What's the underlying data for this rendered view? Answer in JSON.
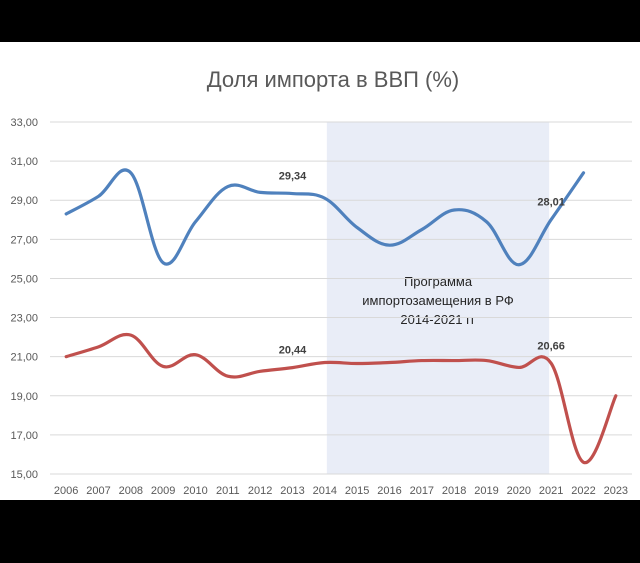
{
  "chart_data": {
    "type": "line",
    "title": "Доля импорта в ВВП (%)",
    "xlabel": "",
    "ylabel": "",
    "x": [
      "2006",
      "2007",
      "2008",
      "2009",
      "2010",
      "2011",
      "2012",
      "2013",
      "2014",
      "2015",
      "2016",
      "2017",
      "2018",
      "2019",
      "2020",
      "2021",
      "2022",
      "2023"
    ],
    "y_ticks": [
      "33,00",
      "31,00",
      "29,00",
      "27,00",
      "25,00",
      "23,00",
      "21,00",
      "19,00",
      "17,00",
      "15,00"
    ],
    "ylim": [
      15,
      33
    ],
    "grid": true,
    "legend": "none",
    "series": [
      {
        "color": "#4F81BD",
        "values": [
          28.3,
          29.2,
          30.4,
          25.8,
          27.9,
          29.7,
          29.4,
          29.34,
          29.1,
          27.6,
          26.7,
          27.5,
          28.5,
          27.9,
          25.7,
          28.01,
          30.4,
          null
        ]
      },
      {
        "color": "#C0504D",
        "values": [
          21.0,
          21.5,
          22.1,
          20.5,
          21.1,
          20.0,
          20.25,
          20.44,
          20.7,
          20.65,
          20.7,
          20.8,
          20.8,
          20.8,
          20.45,
          20.66,
          15.6,
          19.0
        ]
      }
    ],
    "data_labels": [
      {
        "x": "2013",
        "series": 0,
        "text": "29,34"
      },
      {
        "x": "2021",
        "series": 0,
        "text": "28,01"
      },
      {
        "x": "2013",
        "series": 1,
        "text": "20,44"
      },
      {
        "x": "2021",
        "series": 1,
        "text": "20,66"
      }
    ],
    "highlight": {
      "from": "2014",
      "to": "2021",
      "color": "#E9EDF7",
      "label_lines": [
        "Программа",
        "импортозамещения в РФ",
        "2014-2021 гг"
      ]
    }
  }
}
